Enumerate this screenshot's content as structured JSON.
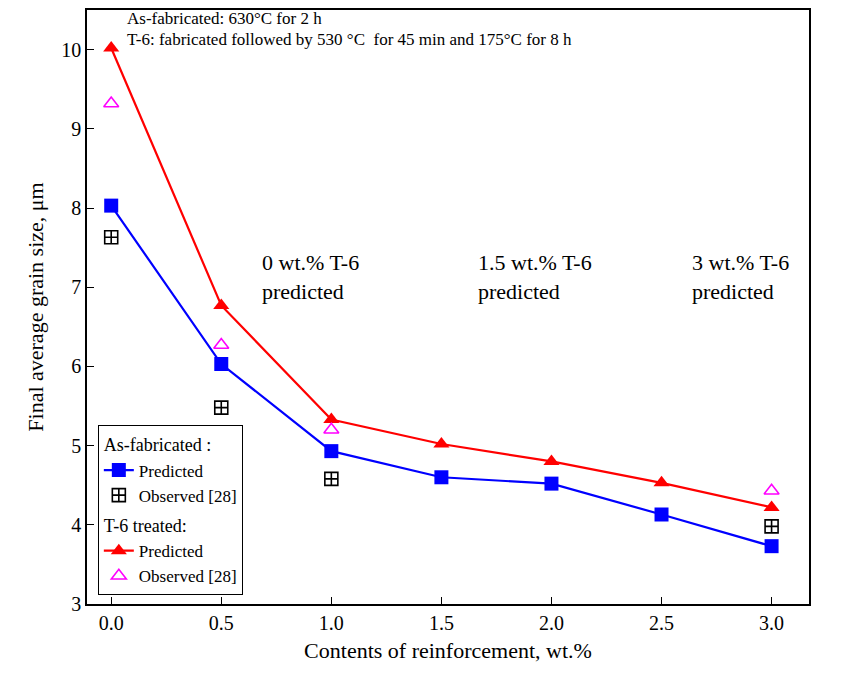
{
  "chart_data": {
    "type": "line",
    "x_label": "Contents of reinforcement, wt.%",
    "y_label": "Final average grain size, μm",
    "annotations": [
      "As-fabricated: 630°C for 2 h",
      "T-6: fabricated followed by 530 °C  for 45 min and 175°C for 8 h",
      "0 wt.% T-6 predicted",
      "1.5 wt.% T-6 predicted",
      "3 wt.% T-6 predicted"
    ],
    "xlim": [
      -0.11,
      3.17
    ],
    "xticks": [
      {
        "value": 0,
        "label": "0.0"
      },
      0.5,
      {
        "value": 1,
        "label": "1.0"
      },
      1.5,
      {
        "value": 2,
        "label": "2.0"
      },
      2.5,
      {
        "value": 3,
        "label": "3.0"
      }
    ],
    "ylim": [
      3,
      10.5
    ],
    "yticks": [
      3,
      4,
      5,
      6,
      7,
      8,
      9,
      10
    ],
    "grid": false,
    "legend": "lower left",
    "series": [
      {
        "name": "Predicted",
        "group": "As-fabricated :",
        "type": "line",
        "color": "#0000ff",
        "marker": "square",
        "line_style": "solid",
        "x": [
          0,
          0.5,
          1,
          1.5,
          2,
          2.5,
          3
        ],
        "values": [
          8.03,
          6.03,
          4.93,
          4.6,
          4.52,
          4.13,
          3.73
        ]
      },
      {
        "name": "Observed [28]",
        "group": "As-fabricated :",
        "type": "scatter",
        "color": "#000000",
        "marker": "square-cross-open",
        "x": [
          0,
          0.5,
          1,
          3
        ],
        "values": [
          7.63,
          5.48,
          4.58,
          3.98
        ]
      },
      {
        "name": "Predicted",
        "group": "T-6 treated:",
        "type": "line",
        "color": "#ff0000",
        "marker": "triangle-up",
        "line_style": "solid",
        "x": [
          0,
          0.5,
          1,
          1.5,
          2,
          2.5,
          3
        ],
        "values": [
          10.02,
          6.77,
          5.33,
          5.02,
          4.8,
          4.53,
          4.22
        ]
      },
      {
        "name": "Observed [28]",
        "group": "T-6 treated:",
        "type": "scatter",
        "color": "#ff00ff",
        "marker": "triangle-up-open",
        "x": [
          0,
          0.5,
          1,
          3
        ],
        "values": [
          9.32,
          6.27,
          5.2,
          4.43
        ]
      }
    ]
  }
}
